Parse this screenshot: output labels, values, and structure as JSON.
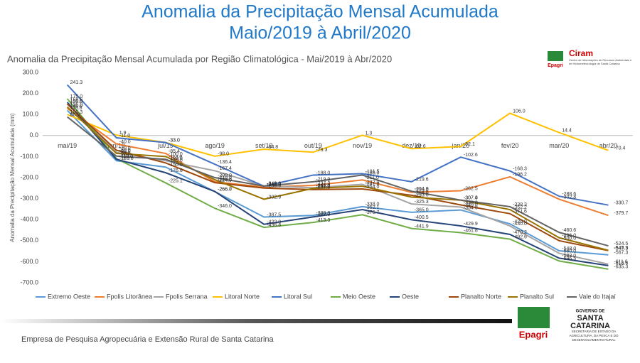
{
  "header": {
    "title_line1": "Anomalia da Precipitação Mensal Acumulada",
    "title_line2": "Maio/2019 à Abril/2020"
  },
  "logos": {
    "ciram": "Ciram",
    "ciram_sub": "Centro de Informações de Recursos Ambientais e de Hidrometeorologia de Santa Catarina",
    "epagri_small": "Epagri",
    "epagri": "Epagri",
    "gov1": "GOVERNO DE",
    "gov2": "SANTA",
    "gov3": "CATARINA",
    "gov_sub": "SECRETARIA DE ESTADO DA AGRICULTURA, DA PESCA E DO DESENVOLVIMENTO RURAL"
  },
  "footer": {
    "text": "Empresa de Pesquisa Agropecuária e Extensão Rural de Santa Catarina"
  },
  "chart_data": {
    "type": "line",
    "title": "Anomalia da Precipitação Mensal Acumulada por Região Climatológica - Mai/2019 à Abr/2020",
    "y_label": "Anomalia da Precipitação Mensal Acumulada (mm)",
    "categories": [
      "mai/19",
      "jun/19",
      "jul/19",
      "ago/19",
      "set/19",
      "out/19",
      "nov/19",
      "dez/19",
      "jan/20",
      "fev/20",
      "mar/20",
      "abr/20"
    ],
    "ylim": [
      -700,
      300
    ],
    "yticks": [
      {
        "value": 300,
        "label": "300.0"
      },
      {
        "value": 200,
        "label": "200.0"
      },
      {
        "value": 100,
        "label": "100.0"
      },
      {
        "value": 0,
        "label": "0.0"
      },
      {
        "value": -100,
        "label": "-100.0"
      },
      {
        "value": -200,
        "label": "-200.0"
      },
      {
        "value": -300,
        "label": "-300.0"
      },
      {
        "value": -400,
        "label": "-400.0"
      },
      {
        "value": -500,
        "label": "-500.0"
      },
      {
        "value": -600,
        "label": "-600.0"
      },
      {
        "value": -700,
        "label": "-700.0"
      }
    ],
    "grid": false,
    "legend": "bottom",
    "series": [
      {
        "name": "Extremo Oeste",
        "color": "#5b9bd5",
        "values": [
          119.8,
          -120.0,
          -150.0,
          -266.7,
          -387.5,
          -380.0,
          -338.0,
          -365.0,
          -354.0,
          -420.0,
          -548.0,
          -567.3
        ],
        "value_labels": [
          "119.8",
          "-120.0",
          "-150.0",
          "-266.7",
          "-387.5",
          "-380.0",
          "-338.0",
          "-365.0",
          "-354.0",
          "-420.0",
          "-548.0",
          "-567.3"
        ]
      },
      {
        "name": "Fpolis Litorânea",
        "color": "#ed7d31",
        "values": [
          130.0,
          -40.0,
          -85.4,
          -220.0,
          -245.0,
          -237.3,
          -211.0,
          -270.0,
          -262.5,
          -196.2,
          -302.8,
          -379.7
        ],
        "value_labels": [
          "130.0",
          "-40.0",
          "-85.4",
          "-220.0",
          "-245.0",
          "-237.3",
          "-211.0",
          "-270.0",
          "-262.5",
          "-196.2",
          "-302.8",
          "-379.7"
        ]
      },
      {
        "name": "Fpolis Serrana",
        "color": "#a5a5a5",
        "values": [
          150.0,
          -80.0,
          -120.0,
          -167.4,
          -240.0,
          -248.0,
          -232.0,
          -325.3,
          -340.0,
          -430.0,
          -560.0,
          -611.6
        ],
        "value_labels": [
          "150.0",
          "-80.0",
          "-120.0",
          "-167.4",
          "-240.0",
          "-248.0",
          "-232.0",
          "-325.3",
          "-340.0",
          "-430.0",
          "-560.0",
          "-611.6"
        ]
      },
      {
        "name": "Litoral Norte",
        "color": "#ffc000",
        "values": [
          100.3,
          1.9,
          -33.0,
          -98.0,
          -64.8,
          -79.3,
          1.3,
          -62.6,
          -52.1,
          106.0,
          14.4,
          -70.4
        ],
        "value_labels": [
          "100.3",
          "1.9",
          "-33.0",
          "-98.0",
          "-64.8",
          "-79.3",
          "1.3",
          "-62.6",
          "-52.1",
          "106.0",
          "14.4",
          "-70.4"
        ]
      },
      {
        "name": "Litoral Sul",
        "color": "#4472c4",
        "values": [
          241.3,
          -11.0,
          -33.0,
          -136.4,
          -241.0,
          -188.0,
          -181.5,
          -219.6,
          -102.6,
          -168.3,
          -288.6,
          -330.7
        ],
        "value_labels": [
          "241.3",
          "-11.0",
          "-33.0",
          "-136.4",
          "-241.0",
          "-188.0",
          "-181.5",
          "-219.6",
          "-102.6",
          "-168.3",
          "-288.6",
          "-330.7"
        ]
      },
      {
        "name": "Meio Oeste",
        "color": "#70ad47",
        "values": [
          175.0,
          -110.0,
          -225.1,
          -346.0,
          -436.8,
          -413.3,
          -376.7,
          -441.9,
          -461.8,
          -492.6,
          -596.5,
          -635.3
        ],
        "value_labels": [
          "175.0",
          "-110.0",
          "-225.1",
          "-346.0",
          "-436.8",
          "-413.3",
          "-376.7",
          "-441.9",
          "-461.8",
          "-492.6",
          "-596.5",
          "-635.3"
        ]
      },
      {
        "name": "Oeste",
        "color": "#264478",
        "values": [
          158.6,
          -113.0,
          -176.8,
          -266.0,
          -422.0,
          -387.0,
          -352.1,
          -400.5,
          -429.9,
          -470.2,
          -583.0,
          -618.6
        ],
        "value_labels": [
          "158.6",
          "-113.0",
          "-176.8",
          "-266.0",
          "-422.0",
          "-387.0",
          "-352.1",
          "-400.5",
          "-429.9",
          "-470.2",
          "-583.0",
          "-618.6"
        ]
      },
      {
        "name": "Planalto Norte",
        "color": "#9e480e",
        "values": [
          150.0,
          -70.0,
          -130.0,
          -224.0,
          -250.0,
          -257.0,
          -254.0,
          -284.0,
          -330.0,
          -371.6,
          -500.0,
          -547.3
        ],
        "value_labels": [
          "150.0",
          "-70.0",
          "-130.0",
          "-224.0",
          "-250.0",
          "-257.0",
          "-254.0",
          "-284.0",
          "-330.0",
          "-371.6",
          "-500.0",
          "-547.3"
        ]
      },
      {
        "name": "Planalto Sul",
        "color": "#997300",
        "values": [
          136.0,
          -85.0,
          -100.0,
          -210.0,
          -302.9,
          -251.0,
          -241.0,
          -293.0,
          -307.4,
          -352.2,
          -486.0,
          -545.9
        ],
        "value_labels": [
          "136.0",
          "-85.0",
          "-100.0",
          "-210.0",
          "-302.9",
          "-251.0",
          "-241.0",
          "-293.0",
          "-307.4",
          "-352.2",
          "-486.0",
          "-545.9"
        ]
      },
      {
        "name": "Vale do Itajaí",
        "color": "#636363",
        "values": [
          88.9,
          -98.0,
          -113.0,
          -200.0,
          -240.0,
          -219.9,
          -188.0,
          -264.9,
          -307.0,
          -338.3,
          -460.6,
          -524.5
        ],
        "value_labels": [
          "88.9",
          "-98.0",
          "-113.0",
          "-200.0",
          "-240.0",
          "-219.9",
          "-188.0",
          "-264.9",
          "-307.0",
          "-338.3",
          "-460.6",
          "-524.5"
        ]
      }
    ]
  }
}
